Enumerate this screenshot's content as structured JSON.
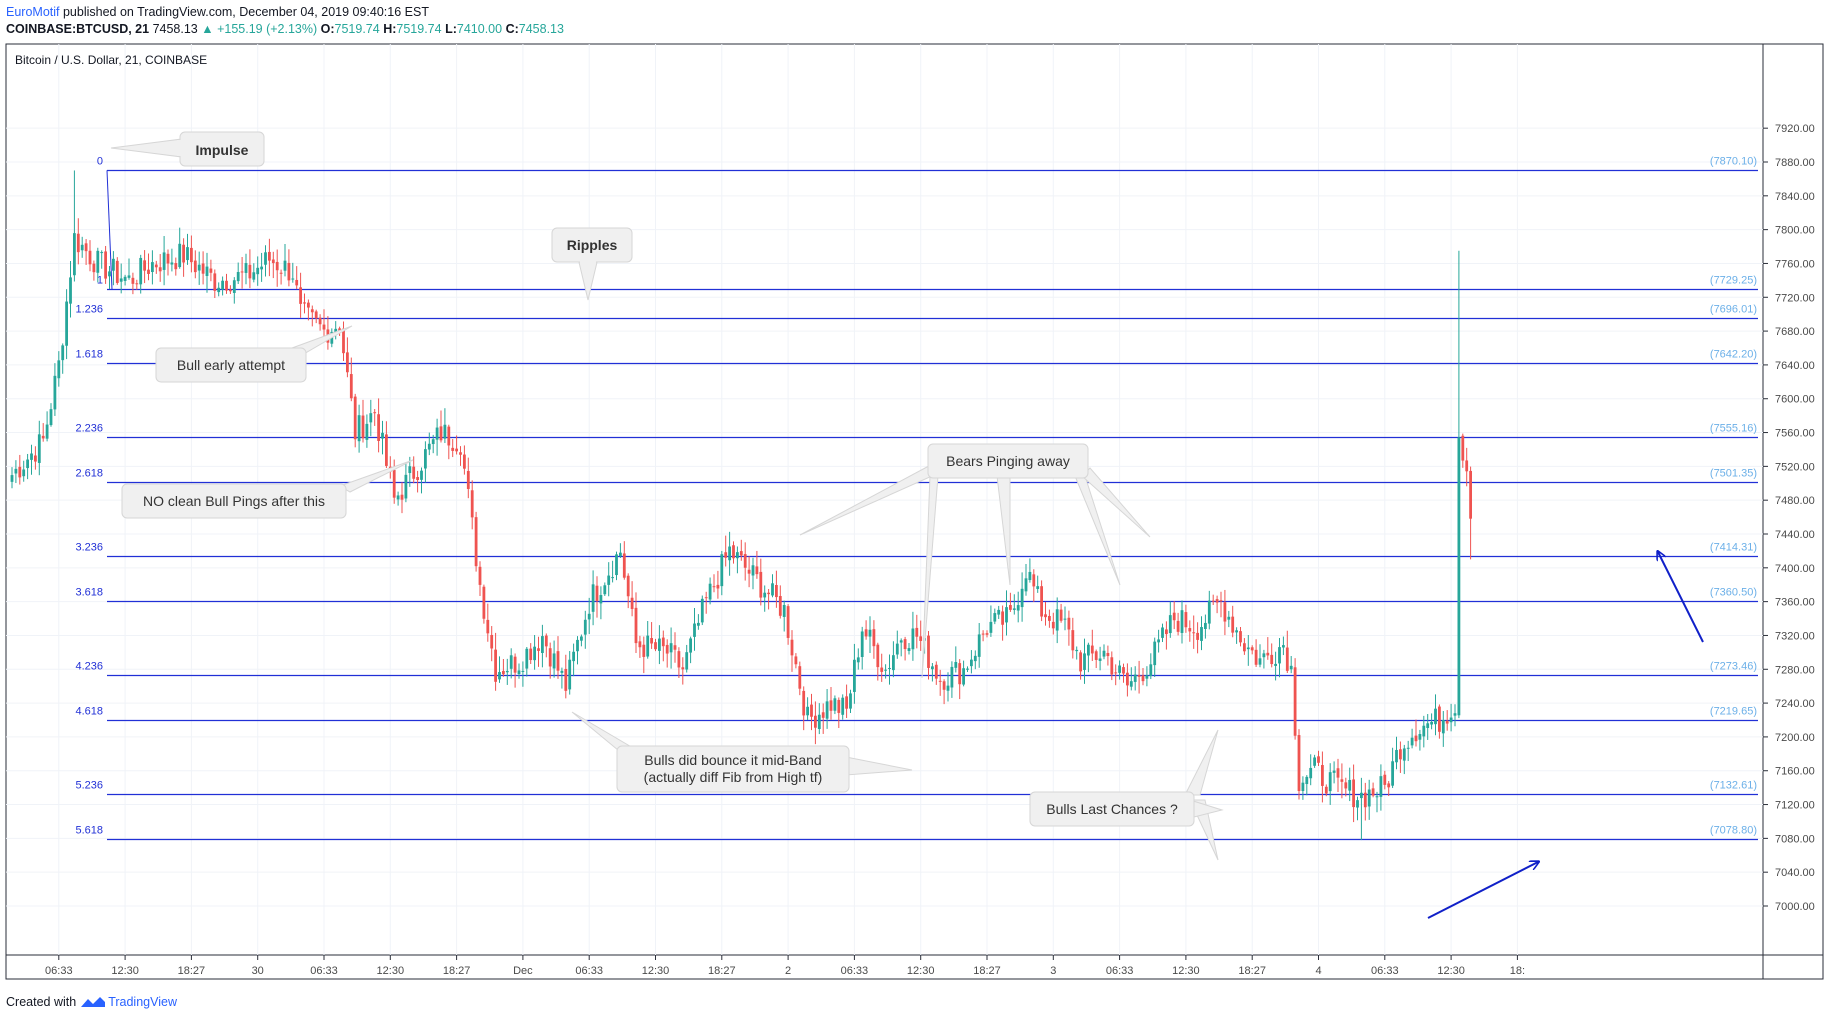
{
  "header": {
    "author": "EuroMotif",
    "published": "published on TradingView.com, December 04, 2019 09:40:16 EST",
    "symbol": "COINBASE:BTCUSD, 21",
    "last": "7458.13",
    "change": "▲ +155.19 (+2.13%)",
    "o_label": "O:",
    "o_val": "7519.74",
    "h_label": "H:",
    "h_val": "7519.74",
    "l_label": "L:",
    "l_val": "7410.00",
    "c_label": "C:",
    "c_val": "7458.13"
  },
  "chart_title": "Bitcoin / U.S. Dollar, 21, COINBASE",
  "footer": {
    "created_with": "Created with",
    "brand": "TradingView"
  },
  "colors": {
    "up": "#26a69a",
    "down": "#ef5350",
    "fib_line": "#2130d6",
    "fib_label": "#2130d6",
    "price_label": "#6cb0e8",
    "arrow": "#1020c8",
    "grid": "#f0f3f8",
    "axis_text": "#4a4a4a",
    "callout_bg": "#f0f0f0"
  },
  "chart_data": {
    "type": "candlestick",
    "y_axis_ticks": [
      7000,
      7040,
      7080,
      7120,
      7160,
      7200,
      7240,
      7280,
      7320,
      7360,
      7400,
      7440,
      7480,
      7520,
      7560,
      7600,
      7640,
      7680,
      7720,
      7760,
      7800,
      7840,
      7880,
      7920
    ],
    "ylim": [
      6975,
      7935
    ],
    "x_axis_ticks": [
      {
        "label": "06:33",
        "bar": 12
      },
      {
        "label": "12:30",
        "bar": 29
      },
      {
        "label": "18:27",
        "bar": 46
      },
      {
        "label": "30",
        "bar": 63
      },
      {
        "label": "06:33",
        "bar": 80
      },
      {
        "label": "12:30",
        "bar": 97
      },
      {
        "label": "18:27",
        "bar": 114
      },
      {
        "label": "Dec",
        "bar": 131
      },
      {
        "label": "06:33",
        "bar": 148
      },
      {
        "label": "12:30",
        "bar": 165
      },
      {
        "label": "18:27",
        "bar": 182
      },
      {
        "label": "2",
        "bar": 199
      },
      {
        "label": "06:33",
        "bar": 216
      },
      {
        "label": "12:30",
        "bar": 233
      },
      {
        "label": "18:27",
        "bar": 250
      },
      {
        "label": "3",
        "bar": 267
      },
      {
        "label": "06:33",
        "bar": 284
      },
      {
        "label": "12:30",
        "bar": 301
      },
      {
        "label": "18:27",
        "bar": 318
      },
      {
        "label": "4",
        "bar": 335
      },
      {
        "label": "06:33",
        "bar": 352
      },
      {
        "label": "12:30",
        "bar": 369
      },
      {
        "label": "18:",
        "bar": 386
      }
    ],
    "fib_levels": [
      {
        "ratio": "0",
        "price": 7870.1,
        "price_label": "(7870.10)"
      },
      {
        "ratio": "1",
        "price": 7729.25,
        "price_label": "(7729.25)"
      },
      {
        "ratio": "1.236",
        "price": 7696.01,
        "price_label": "(7696.01)"
      },
      {
        "ratio": "1.618",
        "price": 7642.2,
        "price_label": "(7642.20)"
      },
      {
        "ratio": "2.236",
        "price": 7555.16,
        "price_label": "(7555.16)"
      },
      {
        "ratio": "2.618",
        "price": 7501.35,
        "price_label": "(7501.35)"
      },
      {
        "ratio": "3.236",
        "price": 7414.31,
        "price_label": "(7414.31)"
      },
      {
        "ratio": "3.618",
        "price": 7360.5,
        "price_label": "(7360.50)"
      },
      {
        "ratio": "4.236",
        "price": 7273.46,
        "price_label": "(7273.46)"
      },
      {
        "ratio": "4.618",
        "price": 7219.65,
        "price_label": "(7219.65)"
      },
      {
        "ratio": "5.236",
        "price": 7132.61,
        "price_label": "(7132.61)"
      },
      {
        "ratio": "5.618",
        "price": 7078.8,
        "price_label": "(7078.80)"
      }
    ],
    "key_points": [
      {
        "bar": 0,
        "price": 7510
      },
      {
        "bar": 8,
        "price": 7550
      },
      {
        "bar": 12,
        "price": 7640
      },
      {
        "bar": 16,
        "price": 7790
      },
      {
        "bar": 22,
        "price": 7760
      },
      {
        "bar": 30,
        "price": 7740
      },
      {
        "bar": 36,
        "price": 7760
      },
      {
        "bar": 44,
        "price": 7770
      },
      {
        "bar": 52,
        "price": 7740
      },
      {
        "bar": 60,
        "price": 7745
      },
      {
        "bar": 66,
        "price": 7765
      },
      {
        "bar": 72,
        "price": 7750
      },
      {
        "bar": 74,
        "price": 7700
      },
      {
        "bar": 80,
        "price": 7680
      },
      {
        "bar": 84,
        "price": 7690
      },
      {
        "bar": 88,
        "price": 7560
      },
      {
        "bar": 93,
        "price": 7585
      },
      {
        "bar": 98,
        "price": 7480
      },
      {
        "bar": 104,
        "price": 7520
      },
      {
        "bar": 110,
        "price": 7560
      },
      {
        "bar": 115,
        "price": 7550
      },
      {
        "bar": 120,
        "price": 7380
      },
      {
        "bar": 124,
        "price": 7280
      },
      {
        "bar": 130,
        "price": 7290
      },
      {
        "bar": 136,
        "price": 7320
      },
      {
        "bar": 142,
        "price": 7260
      },
      {
        "bar": 148,
        "price": 7360
      },
      {
        "bar": 156,
        "price": 7420
      },
      {
        "bar": 160,
        "price": 7310
      },
      {
        "bar": 168,
        "price": 7300
      },
      {
        "bar": 172,
        "price": 7280
      },
      {
        "bar": 178,
        "price": 7360
      },
      {
        "bar": 184,
        "price": 7420
      },
      {
        "bar": 190,
        "price": 7390
      },
      {
        "bar": 198,
        "price": 7350
      },
      {
        "bar": 204,
        "price": 7220
      },
      {
        "bar": 210,
        "price": 7240
      },
      {
        "bar": 214,
        "price": 7230
      },
      {
        "bar": 218,
        "price": 7330
      },
      {
        "bar": 224,
        "price": 7280
      },
      {
        "bar": 228,
        "price": 7320
      },
      {
        "bar": 232,
        "price": 7320
      },
      {
        "bar": 238,
        "price": 7270
      },
      {
        "bar": 244,
        "price": 7280
      },
      {
        "bar": 250,
        "price": 7330
      },
      {
        "bar": 256,
        "price": 7340
      },
      {
        "bar": 260,
        "price": 7400
      },
      {
        "bar": 264,
        "price": 7350
      },
      {
        "bar": 270,
        "price": 7330
      },
      {
        "bar": 274,
        "price": 7290
      },
      {
        "bar": 280,
        "price": 7300
      },
      {
        "bar": 286,
        "price": 7260
      },
      {
        "bar": 292,
        "price": 7290
      },
      {
        "bar": 298,
        "price": 7340
      },
      {
        "bar": 304,
        "price": 7330
      },
      {
        "bar": 310,
        "price": 7360
      },
      {
        "bar": 316,
        "price": 7310
      },
      {
        "bar": 320,
        "price": 7290
      },
      {
        "bar": 326,
        "price": 7310
      },
      {
        "bar": 328,
        "price": 7280
      },
      {
        "bar": 330,
        "price": 7150
      },
      {
        "bar": 334,
        "price": 7160
      },
      {
        "bar": 340,
        "price": 7140
      },
      {
        "bar": 346,
        "price": 7130
      },
      {
        "bar": 352,
        "price": 7140
      },
      {
        "bar": 356,
        "price": 7190
      },
      {
        "bar": 360,
        "price": 7210
      },
      {
        "bar": 366,
        "price": 7220
      },
      {
        "bar": 370,
        "price": 7240
      },
      {
        "bar": 371,
        "price": 7560
      },
      {
        "bar": 373,
        "price": 7520
      },
      {
        "bar": 374,
        "price": 7460
      }
    ],
    "callouts": [
      {
        "text": "Impulse",
        "bold": true
      },
      {
        "text": "Ripples",
        "bold": true
      },
      {
        "text": "Bull early attempt",
        "bold": false
      },
      {
        "text": "NO clean Bull Pings after this",
        "bold": false
      },
      {
        "text": "Bears Pinging away",
        "bold": false
      },
      {
        "text": "Bulls did bounce it mid-Band",
        "bold": false
      },
      {
        "text": "(actually diff Fib from High tf)",
        "bold": false
      },
      {
        "text": "Bulls Last Chances ?",
        "bold": false
      }
    ]
  }
}
